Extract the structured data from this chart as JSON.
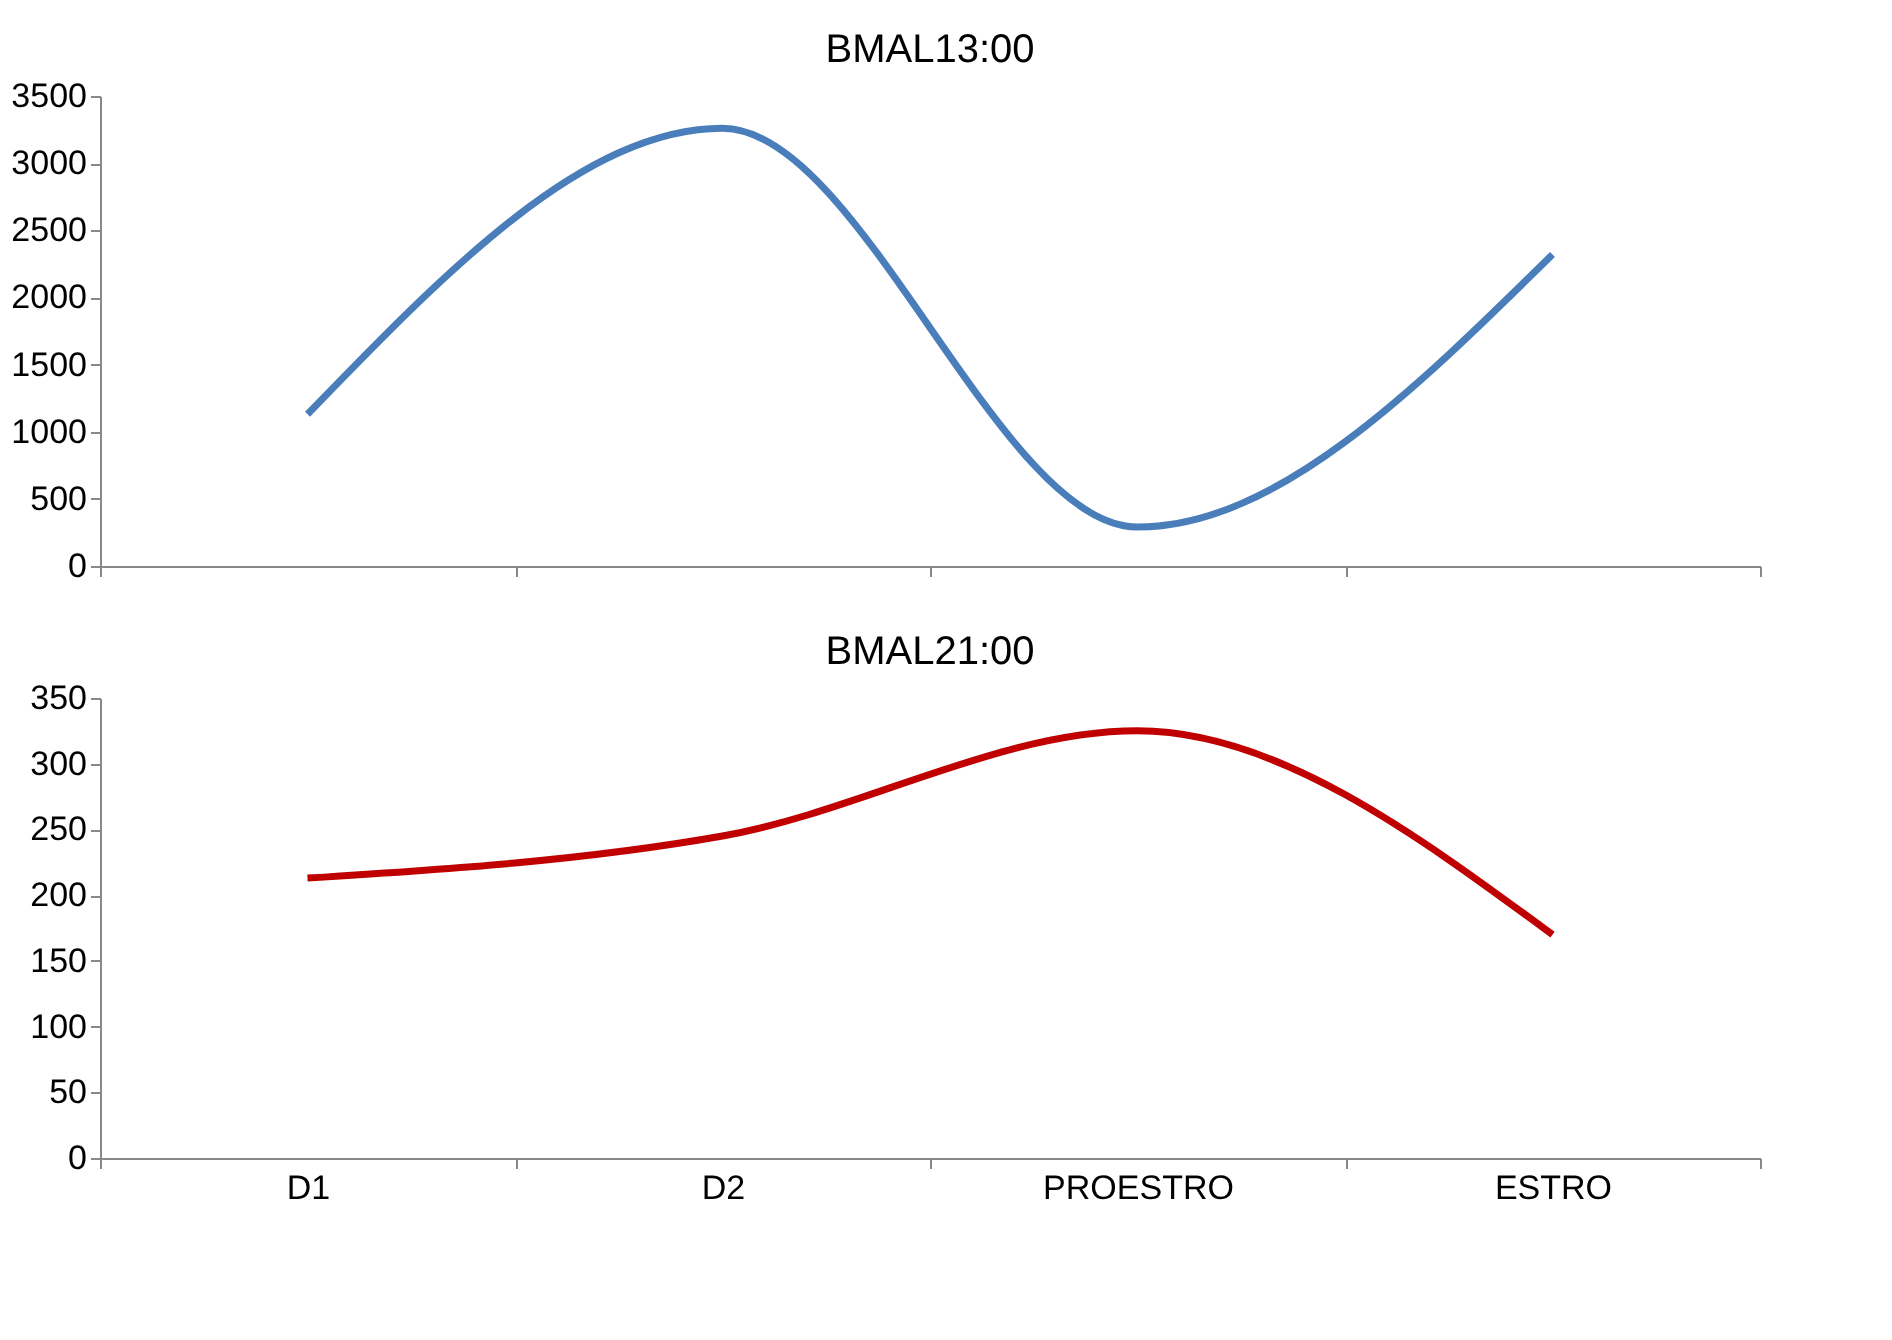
{
  "chart_data": [
    {
      "type": "line",
      "title": "BMAL13:00",
      "categories": [
        null,
        null,
        null,
        null
      ],
      "series": [
        {
          "color": "#4a7ebb",
          "values": [
            1130,
            3260,
            290,
            2320
          ]
        }
      ],
      "ylim": [
        0,
        3500
      ],
      "yticks": [
        0,
        500,
        1000,
        1500,
        2000,
        2500,
        3000,
        3500
      ],
      "grid": false,
      "tick_labels": "y",
      "marker": "none"
    },
    {
      "type": "line",
      "title": "BMAL21:00",
      "categories": [
        "D1",
        "D2",
        "PROESTRO",
        "ESTRO"
      ],
      "series": [
        {
          "color": "#c00000",
          "values": [
            213,
            245,
            325,
            170
          ]
        }
      ],
      "ylim": [
        0,
        350
      ],
      "yticks": [
        0,
        50,
        100,
        150,
        200,
        250,
        300,
        350
      ],
      "grid": false,
      "marker": "none"
    }
  ]
}
